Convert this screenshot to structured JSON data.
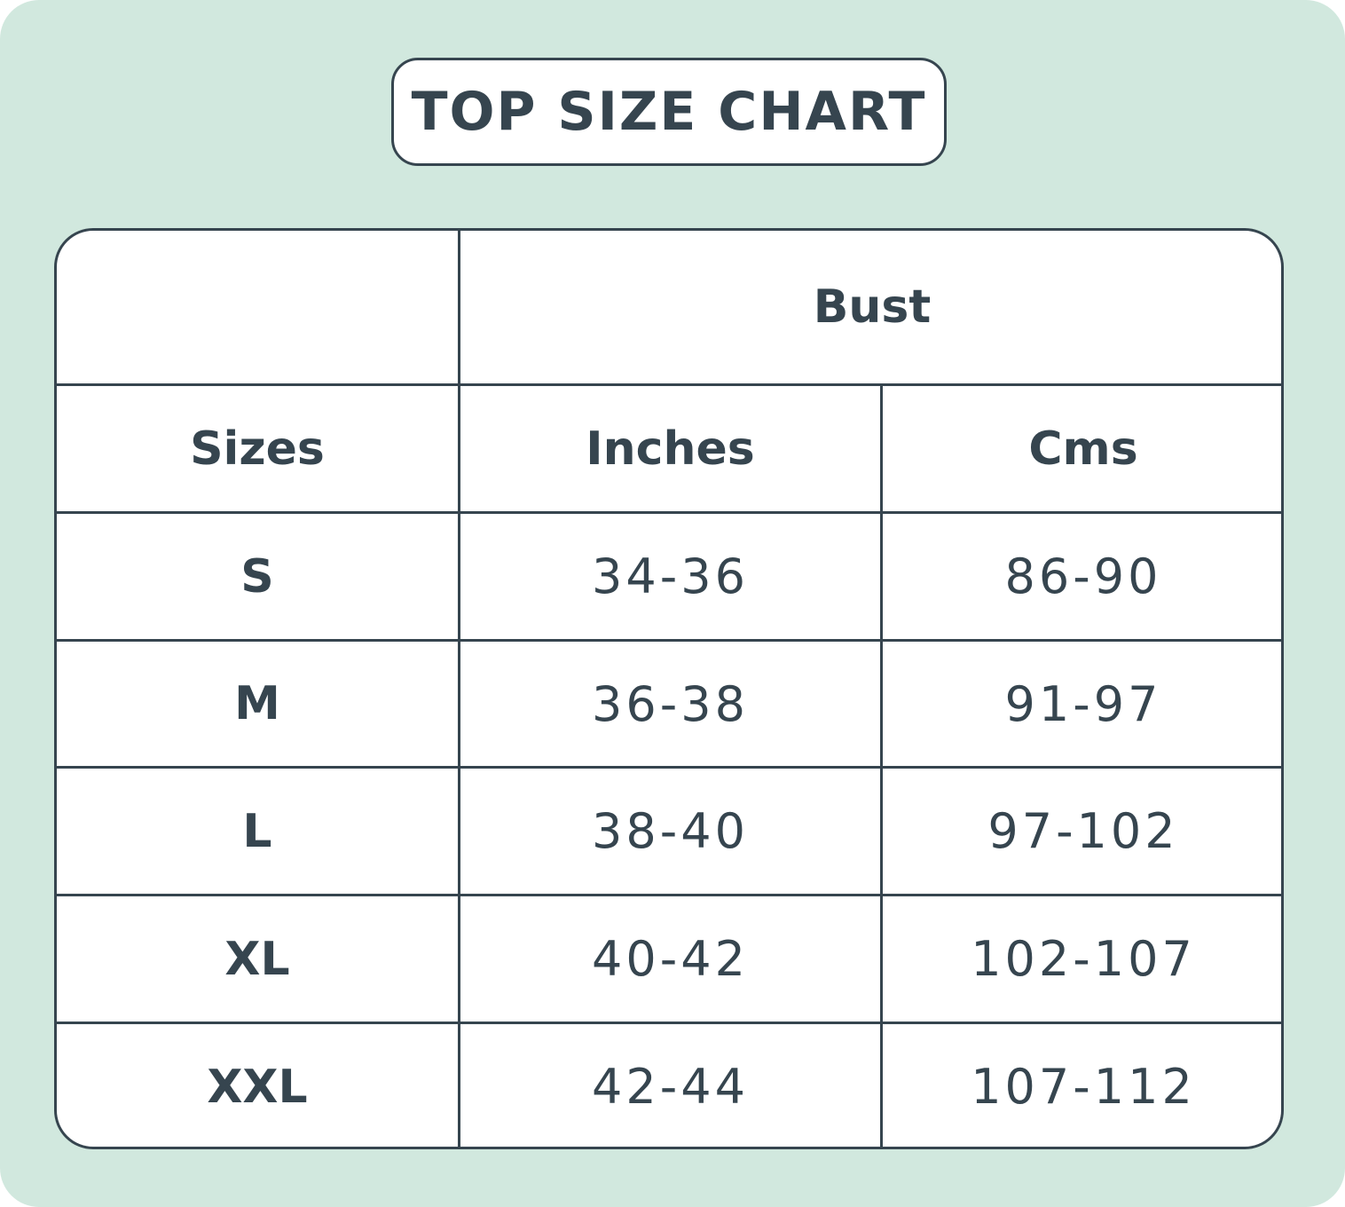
{
  "title": "TOP SIZE CHART",
  "table": {
    "group_header": "Bust",
    "columns": [
      "Sizes",
      "Inches",
      "Cms"
    ],
    "rows": [
      {
        "size": "S",
        "inches": "34-36",
        "cms": "86-90"
      },
      {
        "size": "M",
        "inches": "36-38",
        "cms": "91-97"
      },
      {
        "size": "L",
        "inches": "38-40",
        "cms": "97-102"
      },
      {
        "size": "XL",
        "inches": "40-42",
        "cms": "102-107"
      },
      {
        "size": "XXL",
        "inches": "42-44",
        "cms": "107-112"
      }
    ]
  },
  "colors": {
    "background": "#d1e8de",
    "ink": "#36454f",
    "surface": "#ffffff"
  }
}
